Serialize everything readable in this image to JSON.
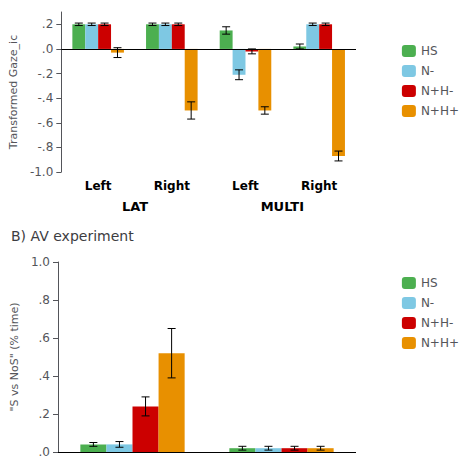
{
  "chart_data": [
    {
      "type": "bar",
      "ylabel": "Transformed Gaze_ic",
      "categories": [
        "Left",
        "Right",
        "Left",
        "Right"
      ],
      "annotations": [
        "LAT",
        "MULTI"
      ],
      "series": [
        {
          "name": "HS",
          "color": "#4CAF50",
          "values": [
            0.2,
            0.2,
            0.15,
            0.02
          ],
          "errors": [
            0.01,
            0.01,
            0.03,
            0.02
          ]
        },
        {
          "name": "N-",
          "color": "#7EC8E3",
          "values": [
            0.2,
            0.2,
            -0.21,
            0.2
          ],
          "errors": [
            0.01,
            0.01,
            0.04,
            0.01
          ]
        },
        {
          "name": "N+H-",
          "color": "#CC0000",
          "values": [
            0.2,
            0.2,
            -0.02,
            0.2
          ],
          "errors": [
            0.01,
            0.01,
            0.02,
            0.01
          ]
        },
        {
          "name": "N+H+",
          "color": "#E89000",
          "values": [
            -0.03,
            -0.5,
            -0.5,
            -0.87
          ],
          "errors": [
            0.04,
            0.07,
            0.03,
            0.04
          ]
        }
      ],
      "ylim": [
        -1.0,
        0.3
      ],
      "yticks": [
        {
          "value": -1.0,
          "label": "-1.0"
        },
        {
          "value": -0.8,
          "label": "-.8"
        },
        {
          "value": -0.6,
          "label": "-.6"
        },
        {
          "value": -0.4,
          "label": "-.4"
        },
        {
          "value": -0.2,
          "label": "-.2"
        },
        {
          "value": 0.0,
          "label": ".0"
        },
        {
          "value": 0.2,
          "label": ".2"
        }
      ],
      "grid": false,
      "legend": "right"
    },
    {
      "type": "bar",
      "title": "B) AV experiment",
      "ylabel": "\"S vs NoS\" (% time)",
      "categories": [
        null,
        null
      ],
      "series": [
        {
          "name": "HS",
          "color": "#4CAF50",
          "values": [
            0.04,
            0.02
          ],
          "errors": [
            0.01,
            0.01
          ]
        },
        {
          "name": "N-",
          "color": "#7EC8E3",
          "values": [
            0.04,
            0.02
          ],
          "errors": [
            0.015,
            0.01
          ]
        },
        {
          "name": "N+H-",
          "color": "#CC0000",
          "values": [
            0.24,
            0.02
          ],
          "errors": [
            0.05,
            0.01
          ]
        },
        {
          "name": "N+H+",
          "color": "#E89000",
          "values": [
            0.52,
            0.02
          ],
          "errors": [
            0.13,
            0.01
          ]
        }
      ],
      "ylim": [
        0.0,
        1.0
      ],
      "yticks": [
        {
          "value": 0.0,
          "label": ".0"
        },
        {
          "value": 0.2,
          "label": ".2"
        },
        {
          "value": 0.4,
          "label": ".4"
        },
        {
          "value": 0.6,
          "label": ".6"
        },
        {
          "value": 0.8,
          "label": ".8"
        },
        {
          "value": 1.0,
          "label": "1.0"
        }
      ],
      "grid": false,
      "legend": "right"
    }
  ]
}
